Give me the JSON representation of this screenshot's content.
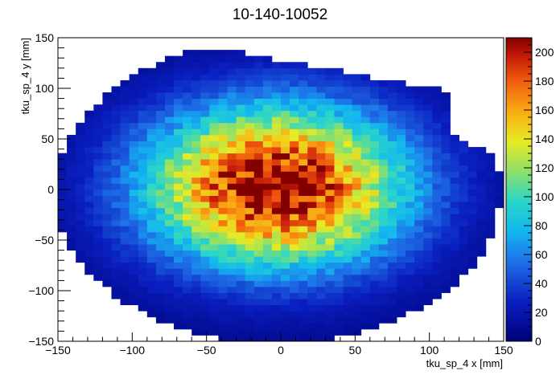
{
  "chart_data": {
    "type": "heatmap",
    "title": "10-140-10052",
    "xlabel": "tku_sp_4 x [mm]",
    "ylabel": "tku_sp_4 y [mm]",
    "xlim": [
      -150,
      150
    ],
    "ylim": [
      -150,
      150
    ],
    "zlim": [
      0,
      210
    ],
    "x_ticks": [
      -150,
      -100,
      -50,
      0,
      50,
      100,
      150
    ],
    "y_ticks": [
      -150,
      -100,
      -50,
      0,
      50,
      100,
      150
    ],
    "z_ticks": [
      0,
      20,
      40,
      60,
      80,
      100,
      120,
      140,
      160,
      180,
      200
    ],
    "colormap": "rainbow",
    "bin_width_mm": 6,
    "peak": {
      "x": -3,
      "y": 3,
      "counts": 210
    },
    "grid": false,
    "legend": "none"
  }
}
